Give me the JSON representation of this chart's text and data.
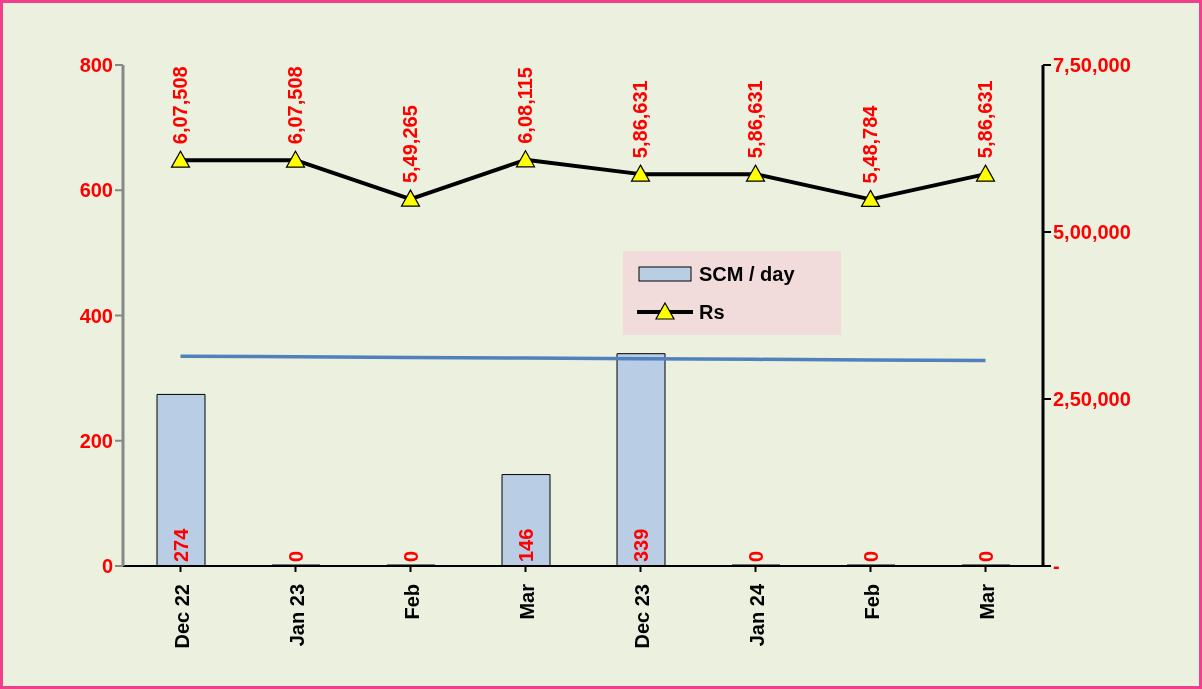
{
  "chart_data": {
    "type": "bar",
    "categories": [
      "Dec 22",
      "Jan 23",
      "Feb",
      "Mar",
      "Dec 23",
      "Jan 24",
      "Feb",
      "Mar"
    ],
    "series": [
      {
        "name": "SCM / day",
        "type": "bar",
        "color": "#b9cde5",
        "values": [
          274,
          0,
          0,
          146,
          339,
          0,
          0,
          0
        ],
        "value_labels": [
          "274",
          "0",
          "0",
          "146",
          "339",
          "0",
          "0",
          "0"
        ]
      },
      {
        "name": "Rs",
        "type": "line",
        "axis": "y2",
        "color": "#000000",
        "marker": "triangle",
        "values": [
          607508,
          607508,
          549265,
          608115,
          586631,
          586631,
          548784,
          586631
        ],
        "value_labels": [
          "6,07,508",
          "6,07,508",
          "5,49,265",
          "6,08,115",
          "5,86,631",
          "5,86,631",
          "5,48,784",
          "5,86,631"
        ]
      },
      {
        "type": "line",
        "color": "#4f81bd",
        "marker": "none",
        "values": [
          335,
          334,
          333,
          332,
          331,
          330,
          329,
          328
        ]
      }
    ],
    "ylim": [
      0,
      800
    ],
    "yticks": [
      0,
      200,
      400,
      600,
      800
    ],
    "y2lim": [
      0,
      750000
    ],
    "y2ticks": [
      {
        "value": 0,
        "label": "-"
      },
      {
        "value": 250000,
        "label": "2,50,000"
      },
      {
        "value": 500000,
        "label": "5,00,000"
      },
      {
        "value": 750000,
        "label": "7,50,000"
      }
    ],
    "legend": "center",
    "grid": false,
    "line_style": "solid"
  }
}
